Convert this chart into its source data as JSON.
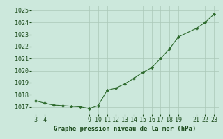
{
  "x": [
    3,
    4,
    5,
    6,
    7,
    8,
    9,
    10,
    11,
    12,
    13,
    14,
    15,
    16,
    17,
    18,
    19,
    21,
    22,
    23
  ],
  "y": [
    1017.5,
    1017.3,
    1017.15,
    1017.1,
    1017.05,
    1017.0,
    1016.85,
    1017.1,
    1018.35,
    1018.55,
    1018.9,
    1019.35,
    1019.85,
    1020.25,
    1021.0,
    1021.8,
    1022.8,
    1023.5,
    1024.0,
    1024.7
  ],
  "xlim": [
    2.5,
    23.5
  ],
  "ylim": [
    1016.4,
    1025.4
  ],
  "yticks": [
    1017,
    1018,
    1019,
    1020,
    1021,
    1022,
    1023,
    1024,
    1025
  ],
  "xticks": [
    3,
    4,
    9,
    10,
    11,
    12,
    13,
    14,
    15,
    16,
    17,
    18,
    19,
    21,
    22,
    23
  ],
  "line_color": "#2d6a2d",
  "marker_color": "#2d6a2d",
  "bg_color": "#cce8dc",
  "grid_color": "#aac8b8",
  "xlabel": "Graphe pression niveau de la mer (hPa)",
  "xlabel_color": "#1a4a1a",
  "tick_color": "#1a4a1a",
  "label_fontsize": 6.5,
  "tick_fontsize": 6.0
}
